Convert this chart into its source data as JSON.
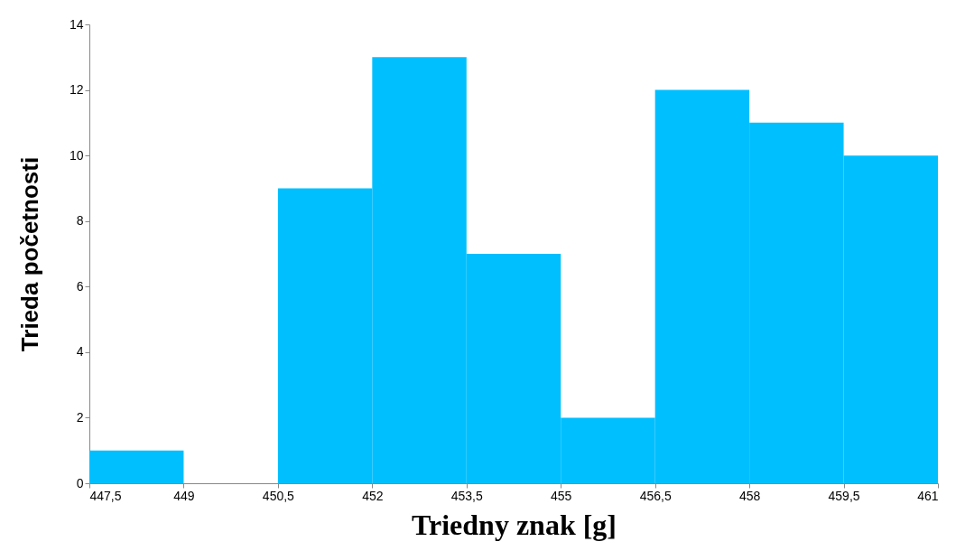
{
  "chart_data": {
    "type": "histogram",
    "xlabel": "Triedny znak [g]",
    "ylabel": "Trieda početnosti",
    "bins": [
      447.5,
      449,
      450.5,
      452,
      453.5,
      455,
      456.5,
      458,
      459.5,
      461
    ],
    "values": [
      1,
      0,
      9,
      13,
      7,
      2,
      12,
      11,
      10
    ],
    "color": "#00bfff",
    "xlim": [
      447.5,
      461
    ],
    "xticks": [
      {
        "value": 447.5,
        "label": "447,5"
      },
      449,
      {
        "value": 450.5,
        "label": "450,5"
      },
      452,
      {
        "value": 453.5,
        "label": "453,5"
      },
      455,
      {
        "value": 456.5,
        "label": "456,5"
      },
      458,
      {
        "value": 459.5,
        "label": "459,5"
      },
      461
    ],
    "ylim": [
      0,
      14
    ],
    "yticks": [
      0,
      2,
      4,
      6,
      8,
      10,
      12,
      14
    ],
    "grid": false
  }
}
